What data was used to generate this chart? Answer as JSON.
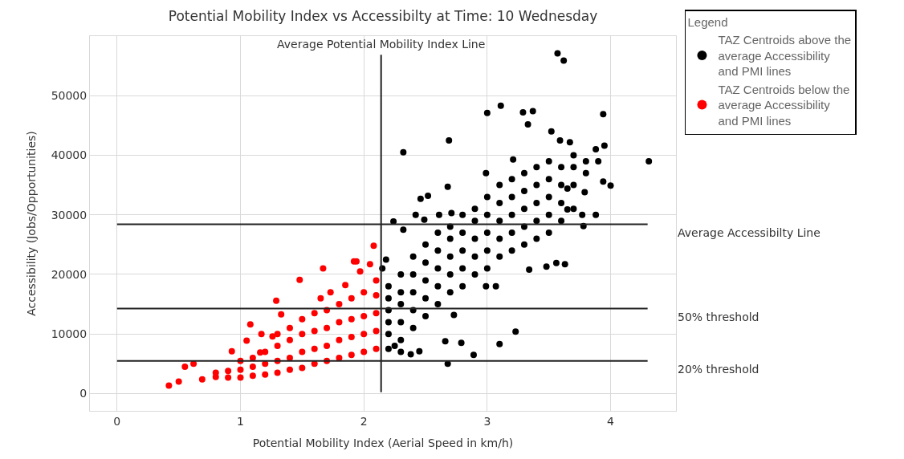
{
  "chart_data": {
    "type": "scatter",
    "title": "Potential Mobility Index vs Accessibilty at Time: 10 Wednesday",
    "xlabel": "Potential Mobility Index (Aerial Speed in km/h)",
    "ylabel": "Accessibility (Jobs/Opportunities)",
    "legend_title": "Legend",
    "xlim": [
      -0.22,
      4.53
    ],
    "xticks": [
      0,
      1,
      2,
      3,
      4
    ],
    "ylim": [
      -2900,
      60000
    ],
    "yticks": [
      0,
      10000,
      20000,
      30000,
      40000,
      50000
    ],
    "grid": true,
    "legend": "top right",
    "marker": "circle",
    "ref_lines": [
      {
        "axis": "x",
        "value": 2.14,
        "label": "Average Potential Mobility Index Line",
        "color": "#222222"
      },
      {
        "axis": "y",
        "value": 28400,
        "label": "Average Accessibilty Line",
        "color": "#222222"
      },
      {
        "axis": "y",
        "value": 14270,
        "label": "50% threshold",
        "color": "#222222"
      },
      {
        "axis": "y",
        "value": 5470,
        "label": "20% threshold",
        "color": "#222222"
      }
    ],
    "series": [
      {
        "name": "TAZ Centroids above the average Accessibility and PMI lines",
        "color": "#000000",
        "x": [
          3.57,
          3.62,
          3.11,
          3.0,
          3.29,
          3.37,
          3.33,
          3.94,
          4.31,
          2.69,
          2.32,
          3.52,
          3.95,
          3.88,
          3.59,
          3.67,
          3.21,
          2.99,
          2.68,
          2.52,
          2.46,
          4.0,
          3.94,
          3.79,
          3.65,
          3.77,
          3.88,
          3.65,
          3.78,
          3.63,
          3.56,
          3.34,
          3.48,
          3.23,
          3.1,
          2.89,
          2.68,
          2.79,
          2.66,
          2.45,
          2.38,
          2.73,
          2.99,
          3.07,
          2.24,
          2.32,
          2.42,
          2.61,
          2.71,
          2.49,
          2.18,
          2.15,
          2.2,
          2.2,
          2.2,
          2.2,
          2.2,
          2.3,
          2.3,
          2.3,
          2.3,
          2.3,
          2.4,
          2.4,
          2.4,
          2.4,
          2.4,
          2.5,
          2.5,
          2.5,
          2.5,
          2.5,
          2.6,
          2.6,
          2.6,
          2.6,
          2.6,
          2.7,
          2.7,
          2.7,
          2.7,
          2.7,
          2.8,
          2.8,
          2.8,
          2.8,
          2.8,
          2.9,
          2.9,
          2.9,
          2.9,
          2.9,
          3.0,
          3.0,
          3.0,
          3.0,
          3.0,
          3.1,
          3.1,
          3.1,
          3.1,
          3.1,
          3.2,
          3.2,
          3.2,
          3.2,
          3.2,
          3.3,
          3.3,
          3.3,
          3.3,
          3.3,
          3.4,
          3.4,
          3.4,
          3.4,
          3.4,
          3.5,
          3.5,
          3.5,
          3.5,
          3.5,
          3.6,
          3.6,
          3.6,
          3.6,
          3.7,
          3.7,
          3.7,
          3.7,
          3.8,
          3.8,
          3.9,
          2.2,
          2.25,
          2.3
        ],
        "values": [
          57100,
          55900,
          48300,
          47100,
          47200,
          47400,
          45200,
          46900,
          39000,
          42500,
          40500,
          44000,
          41600,
          41000,
          42500,
          42200,
          39300,
          37000,
          34700,
          33200,
          32700,
          34900,
          35600,
          33800,
          34400,
          30000,
          30000,
          30900,
          28100,
          21700,
          21900,
          20800,
          21300,
          10400,
          8300,
          6500,
          5000,
          8500,
          8800,
          7100,
          6600,
          13200,
          18000,
          18000,
          28900,
          27500,
          30000,
          30000,
          30300,
          29200,
          22500,
          21000,
          10000,
          12000,
          14000,
          16000,
          18000,
          9000,
          12000,
          15000,
          17000,
          20000,
          11000,
          14000,
          17000,
          20000,
          23000,
          13000,
          16000,
          19000,
          22000,
          25000,
          15000,
          18000,
          21000,
          24000,
          27000,
          17000,
          20000,
          23000,
          26000,
          28000,
          18000,
          21000,
          24000,
          27000,
          30000,
          20000,
          23000,
          26000,
          29000,
          31000,
          21000,
          24000,
          27000,
          30000,
          33000,
          23000,
          26000,
          29000,
          32000,
          35000,
          24000,
          27000,
          30000,
          33000,
          36000,
          25000,
          28000,
          31000,
          34000,
          37000,
          26000,
          29000,
          32000,
          35000,
          38000,
          27000,
          30000,
          33000,
          36000,
          39000,
          29000,
          32000,
          35000,
          38000,
          31000,
          35000,
          38000,
          40000,
          37000,
          39000,
          39000,
          7500,
          8000,
          7000
        ]
      },
      {
        "name": "TAZ Centroids below the average Accessibility and PMI lines",
        "color": "#ff0000",
        "x": [
          0.42,
          0.5,
          0.55,
          0.62,
          0.69,
          1.48,
          1.29,
          1.67,
          1.92,
          1.94,
          2.08,
          2.05,
          1.97,
          1.73,
          1.33,
          1.08,
          1.05,
          1.17,
          0.93,
          1.16,
          1.26,
          1.85,
          1.65,
          0.8,
          0.8,
          0.9,
          0.9,
          1.0,
          1.0,
          1.0,
          1.1,
          1.1,
          1.1,
          1.2,
          1.2,
          1.2,
          1.3,
          1.3,
          1.3,
          1.3,
          1.4,
          1.4,
          1.4,
          1.4,
          1.5,
          1.5,
          1.5,
          1.5,
          1.6,
          1.6,
          1.6,
          1.6,
          1.7,
          1.7,
          1.7,
          1.7,
          1.8,
          1.8,
          1.8,
          1.8,
          1.9,
          1.9,
          1.9,
          1.9,
          2.0,
          2.0,
          2.0,
          2.0,
          2.1,
          2.1,
          2.1,
          2.1,
          2.1
        ],
        "values": [
          1330,
          2000,
          4500,
          5000,
          2400,
          19100,
          15600,
          21000,
          22200,
          22200,
          24800,
          21700,
          20500,
          17000,
          13300,
          11600,
          8900,
          10000,
          7100,
          6900,
          9600,
          18200,
          16000,
          2800,
          3500,
          2700,
          3800,
          2700,
          4000,
          5500,
          3000,
          4500,
          6000,
          3200,
          5000,
          7000,
          3500,
          5500,
          8000,
          10000,
          4000,
          6000,
          9000,
          11000,
          4300,
          7000,
          10000,
          12500,
          5000,
          7500,
          10500,
          13500,
          5500,
          8000,
          11000,
          14000,
          6000,
          9000,
          12000,
          15000,
          6500,
          9500,
          12500,
          16000,
          7000,
          10000,
          13000,
          17000,
          7500,
          10500,
          13500,
          16500,
          19000
        ]
      }
    ]
  }
}
